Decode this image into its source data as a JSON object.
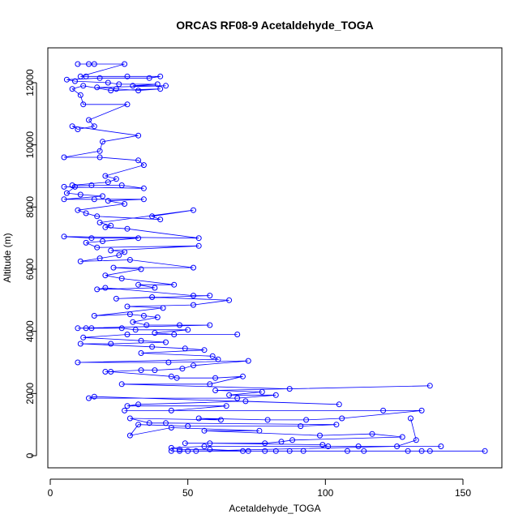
{
  "chart_data": {
    "type": "scatter",
    "title": "ORCAS RF08-9 Acetaldehyde_TOGA",
    "xlabel": "Acetaldehyde_TOGA",
    "ylabel": "Altitude (m)",
    "xlim": [
      0,
      163
    ],
    "ylim": [
      -200,
      13000
    ],
    "xticks": [
      0,
      50,
      100,
      150
    ],
    "xtick_labels": [
      "0",
      "50",
      "100",
      "150"
    ],
    "yticks": [
      0,
      2000,
      4000,
      6000,
      8000,
      10000,
      12000
    ],
    "ytick_labels": [
      "0",
      "2000",
      "4000",
      "6000",
      "8000",
      "10000",
      "12000"
    ],
    "grid": false,
    "legend": "none",
    "line_connected": true,
    "marker": "open-circle",
    "color": "#0000ff",
    "series": [
      {
        "points": [
          [
            10,
            12600
          ],
          [
            14,
            12600
          ],
          [
            16,
            12600
          ],
          [
            27,
            12600
          ],
          [
            11,
            12200
          ],
          [
            13,
            12200
          ],
          [
            28,
            12200
          ],
          [
            40,
            12200
          ],
          [
            36,
            12150
          ],
          [
            18,
            12150
          ],
          [
            6,
            12100
          ],
          [
            9,
            12050
          ],
          [
            21,
            12000
          ],
          [
            25,
            11950
          ],
          [
            39,
            11950
          ],
          [
            30,
            11900
          ],
          [
            42,
            11900
          ],
          [
            17,
            11850
          ],
          [
            24,
            11800
          ],
          [
            32,
            11750
          ],
          [
            40,
            11800
          ],
          [
            22,
            11750
          ],
          [
            12,
            11900
          ],
          [
            8,
            11800
          ],
          [
            11,
            11600
          ],
          [
            12,
            11300
          ],
          [
            28,
            11300
          ],
          [
            14,
            10800
          ],
          [
            16,
            10600
          ],
          [
            10,
            10500
          ],
          [
            8,
            10600
          ],
          [
            32,
            10300
          ],
          [
            19,
            10100
          ],
          [
            18,
            9800
          ],
          [
            5,
            9600
          ],
          [
            18,
            9600
          ],
          [
            32,
            9500
          ],
          [
            34,
            9350
          ],
          [
            20,
            9000
          ],
          [
            24,
            8900
          ],
          [
            21,
            8800
          ],
          [
            8,
            8700
          ],
          [
            15,
            8700
          ],
          [
            26,
            8700
          ],
          [
            34,
            8600
          ],
          [
            5,
            8650
          ],
          [
            9,
            8650
          ],
          [
            6,
            8450
          ],
          [
            11,
            8400
          ],
          [
            19,
            8350
          ],
          [
            5,
            8250
          ],
          [
            16,
            8250
          ],
          [
            34,
            8250
          ],
          [
            21,
            8200
          ],
          [
            27,
            8100
          ],
          [
            10,
            7900
          ],
          [
            13,
            7800
          ],
          [
            17,
            7700
          ],
          [
            40,
            7600
          ],
          [
            37,
            7700
          ],
          [
            52,
            7900
          ],
          [
            18,
            7500
          ],
          [
            22,
            7400
          ],
          [
            20,
            7350
          ],
          [
            28,
            7300
          ],
          [
            54,
            7000
          ],
          [
            5,
            7050
          ],
          [
            15,
            7000
          ],
          [
            32,
            7000
          ],
          [
            19,
            6900
          ],
          [
            13,
            6850
          ],
          [
            17,
            6700
          ],
          [
            54,
            6750
          ],
          [
            22,
            6600
          ],
          [
            27,
            6550
          ],
          [
            25,
            6450
          ],
          [
            18,
            6350
          ],
          [
            11,
            6250
          ],
          [
            29,
            6300
          ],
          [
            52,
            6050
          ],
          [
            23,
            6050
          ],
          [
            33,
            6000
          ],
          [
            20,
            5800
          ],
          [
            26,
            5700
          ],
          [
            45,
            5500
          ],
          [
            32,
            5500
          ],
          [
            38,
            5400
          ],
          [
            17,
            5350
          ],
          [
            20,
            5400
          ],
          [
            52,
            5150
          ],
          [
            58,
            5150
          ],
          [
            24,
            5050
          ],
          [
            37,
            5100
          ],
          [
            65,
            5000
          ],
          [
            52,
            4850
          ],
          [
            28,
            4800
          ],
          [
            41,
            4750
          ],
          [
            16,
            4500
          ],
          [
            29,
            4550
          ],
          [
            34,
            4500
          ],
          [
            39,
            4450
          ],
          [
            30,
            4300
          ],
          [
            35,
            4200
          ],
          [
            47,
            4200
          ],
          [
            58,
            4200
          ],
          [
            10,
            4100
          ],
          [
            13,
            4100
          ],
          [
            15,
            4100
          ],
          [
            26,
            4100
          ],
          [
            31,
            4050
          ],
          [
            50,
            4050
          ],
          [
            38,
            3950
          ],
          [
            45,
            3900
          ],
          [
            68,
            3900
          ],
          [
            28,
            3900
          ],
          [
            12,
            3800
          ],
          [
            33,
            3700
          ],
          [
            42,
            3650
          ],
          [
            22,
            3600
          ],
          [
            11,
            3600
          ],
          [
            37,
            3500
          ],
          [
            49,
            3450
          ],
          [
            56,
            3400
          ],
          [
            33,
            3300
          ],
          [
            59,
            3200
          ],
          [
            61,
            3100
          ],
          [
            10,
            3000
          ],
          [
            43,
            3000
          ],
          [
            72,
            3050
          ],
          [
            52,
            2900
          ],
          [
            48,
            2800
          ],
          [
            38,
            2750
          ],
          [
            33,
            2750
          ],
          [
            20,
            2700
          ],
          [
            22,
            2700
          ],
          [
            44,
            2550
          ],
          [
            46,
            2500
          ],
          [
            60,
            2500
          ],
          [
            70,
            2550
          ],
          [
            58,
            2300
          ],
          [
            26,
            2300
          ],
          [
            87,
            2150
          ],
          [
            138,
            2250
          ],
          [
            60,
            2100
          ],
          [
            77,
            2050
          ],
          [
            65,
            1950
          ],
          [
            82,
            1950
          ],
          [
            68,
            1850
          ],
          [
            14,
            1850
          ],
          [
            16,
            1900
          ],
          [
            105,
            1650
          ],
          [
            71,
            1750
          ],
          [
            32,
            1650
          ],
          [
            28,
            1600
          ],
          [
            64,
            1600
          ],
          [
            44,
            1450
          ],
          [
            27,
            1450
          ],
          [
            121,
            1450
          ],
          [
            135,
            1450
          ],
          [
            106,
            1200
          ],
          [
            93,
            1150
          ],
          [
            79,
            1150
          ],
          [
            54,
            1200
          ],
          [
            62,
            1150
          ],
          [
            29,
            1200
          ],
          [
            36,
            1050
          ],
          [
            42,
            1050
          ],
          [
            104,
            1000
          ],
          [
            91,
            950
          ],
          [
            50,
            950
          ],
          [
            32,
            1000
          ],
          [
            29,
            650
          ],
          [
            44,
            900
          ],
          [
            76,
            800
          ],
          [
            56,
            800
          ],
          [
            98,
            650
          ],
          [
            117,
            700
          ],
          [
            128,
            600
          ],
          [
            88,
            500
          ],
          [
            84,
            450
          ],
          [
            78,
            400
          ],
          [
            49,
            400
          ],
          [
            58,
            400
          ],
          [
            99,
            350
          ],
          [
            101,
            300
          ],
          [
            112,
            300
          ],
          [
            142,
            300
          ],
          [
            56,
            300
          ],
          [
            44,
            250
          ],
          [
            47,
            200
          ],
          [
            58,
            200
          ],
          [
            70,
            150
          ],
          [
            72,
            150
          ],
          [
            78,
            150
          ],
          [
            82,
            150
          ],
          [
            87,
            150
          ],
          [
            92,
            150
          ],
          [
            108,
            150
          ],
          [
            114,
            150
          ],
          [
            130,
            150
          ],
          [
            138,
            150
          ],
          [
            135,
            150
          ],
          [
            158,
            150
          ],
          [
            44,
            150
          ],
          [
            47,
            150
          ],
          [
            50,
            150
          ],
          [
            53,
            150
          ],
          [
            126,
            300
          ],
          [
            133,
            500
          ],
          [
            131,
            1200
          ]
        ]
      }
    ]
  }
}
